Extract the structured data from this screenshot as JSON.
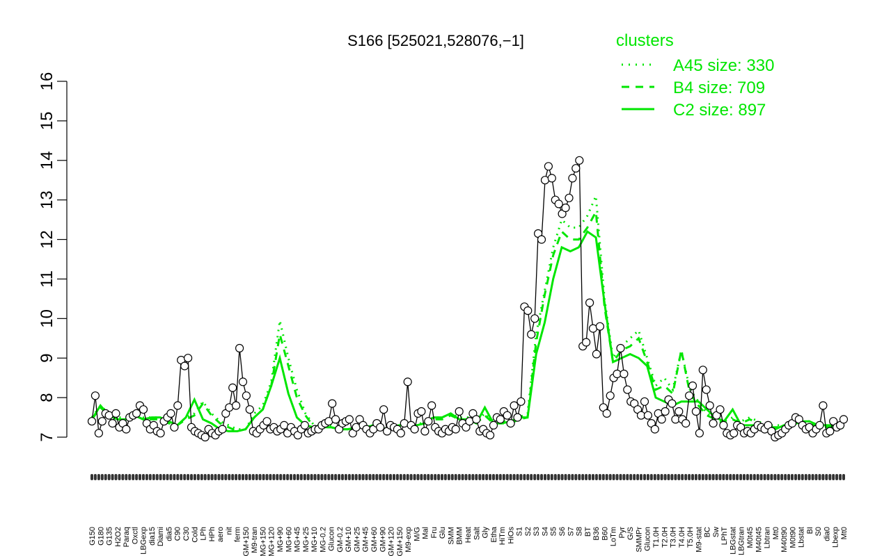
{
  "chart_data": {
    "type": "line",
    "title": "S166 [525021,528076,−1]",
    "ylim": [
      7,
      16
    ],
    "y_ticks": [
      7,
      8,
      9,
      10,
      11,
      12,
      13,
      14,
      15,
      16
    ],
    "legend": {
      "title": "clusters",
      "placement": "top-right",
      "entries": [
        {
          "label": "A45 size: 330",
          "style": "dotted"
        },
        {
          "label": "B4 size: 709",
          "style": "dashed"
        },
        {
          "label": "C2 size: 897",
          "style": "solid"
        }
      ]
    },
    "colors": {
      "series": "#00e600",
      "points": "#000000"
    },
    "x_tick_labels": [
      "G150",
      "G180",
      "G135",
      "H2O2",
      "Paraq",
      "Oxctl",
      "LBGexp",
      "dia15",
      "Diami",
      "dia5",
      "C90",
      "C30",
      "Cold",
      "LPh",
      "HPh",
      "aero",
      "nit",
      "ferm",
      "GM+150",
      "M9-tran",
      "MG+150",
      "MG+120",
      "MG+90",
      "MG+60",
      "MG+45",
      "MG+25",
      "MG+10",
      "MG-0.2",
      "Glucon",
      "GM-0.2",
      "GM+10",
      "GM+25",
      "GM+45",
      "GM+60",
      "GM+90",
      "GM+120",
      "GM+150",
      "M9-exp",
      "M/G",
      "Mal",
      "Fru",
      "Glu",
      "SMM",
      "BMM",
      "Heat",
      "Salt",
      "Gly",
      "Etha",
      "HiTm",
      "HiOs",
      "S1",
      "S2",
      "S3",
      "S4",
      "S5",
      "S6",
      "S7",
      "S8",
      "BT",
      "B36",
      "B60",
      "LoTm",
      "Pyr",
      "G/S",
      "SMMPr",
      "Glucon",
      "T1.0H",
      "T2.0H",
      "T3.0H",
      "T4.0H",
      "T5.0H",
      "M9-stat",
      "BC",
      "Sw",
      "LPhT",
      "LBGstat",
      "LBGtran",
      "M0t45",
      "M40t45",
      "Lbtran",
      "Mt0",
      "M40t90",
      "M0t90",
      "Lbstat",
      "BI",
      "S0",
      "dia0",
      "Lbexp",
      "Mt0"
    ],
    "x_visible_labels": [
      "G150",
      "G180",
      "G135",
      "H2O2",
      "Paraq",
      "Oxctl",
      "LBGexp",
      "dia15",
      "Diami",
      "dia5",
      "C90",
      "C30",
      "Cold",
      "LPh",
      "HPh",
      "aero",
      "nit",
      "ferm",
      "GM+150",
      "M9-tran",
      "MG+150",
      "MG+120",
      "M/G",
      "Mal",
      "Fru",
      "Glu",
      "SMM",
      "BMM",
      "Heat",
      "Salt",
      "Gly",
      "Etha",
      "HiTm",
      "HiOs",
      "S1",
      "S2",
      "S3",
      "S4",
      "S3",
      "S5",
      "S6",
      "S7",
      "S6",
      "S8",
      "S6",
      "BT",
      "B36",
      "B60",
      "LoTm",
      "Pyr",
      "G/S",
      "Glucon",
      "SMMPr",
      "BC",
      "Sw",
      "LPhT",
      "LBGstat",
      "LBGtran",
      "M0t45",
      "M40t45",
      "Lbtran",
      "Mt0",
      "M40t90",
      "M0t90",
      "Lbstat",
      "BI",
      "S0",
      "dia0",
      "M0t45",
      "Lbexp",
      "Mt0"
    ],
    "series": [
      {
        "name": "points",
        "values": [
          7.4,
          8.05,
          7.1,
          7.4,
          7.6,
          7.55,
          7.35,
          7.6,
          7.25,
          7.35,
          7.2,
          7.5,
          7.55,
          7.6,
          7.8,
          7.7,
          7.35,
          7.2,
          7.3,
          7.15,
          7.1,
          7.4,
          7.5,
          7.6,
          7.25,
          7.8,
          8.95,
          8.8,
          9.0,
          7.25,
          7.15,
          7.1,
          7.05,
          7.0,
          7.2,
          7.1,
          7.05,
          7.15,
          7.2,
          7.6,
          7.75,
          8.25,
          7.8,
          9.25,
          8.4,
          8.05,
          7.7,
          7.15,
          7.1,
          7.2,
          7.3,
          7.4,
          7.2,
          7.25,
          7.15,
          7.2,
          7.3,
          7.1,
          7.25,
          7.15,
          7.05,
          7.2,
          7.3,
          7.1,
          7.15,
          7.2,
          7.2,
          7.3,
          7.35,
          7.4,
          7.85,
          7.45,
          7.2,
          7.35,
          7.4,
          7.45,
          7.1,
          7.25,
          7.45,
          7.3,
          7.2,
          7.1,
          7.2,
          7.35,
          7.25,
          7.7,
          7.15,
          7.3,
          7.25,
          7.2,
          7.1,
          7.35,
          8.4,
          7.3,
          7.2,
          7.6,
          7.65,
          7.15,
          7.4,
          7.8,
          7.25,
          7.15,
          7.1,
          7.2,
          7.15,
          7.25,
          7.2,
          7.65,
          7.35,
          7.25,
          7.4,
          7.6,
          7.45,
          7.15,
          7.2,
          7.1,
          7.05,
          7.3,
          7.5,
          7.45,
          7.65,
          7.55,
          7.35,
          7.8,
          7.5,
          7.9,
          10.3,
          10.2,
          9.6,
          10.0,
          12.15,
          12.0,
          13.5,
          13.85,
          13.55,
          13.0,
          12.9,
          12.65,
          12.8,
          13.05,
          13.55,
          13.8,
          14.0,
          9.3,
          9.4,
          10.4,
          9.75,
          9.1,
          9.8,
          7.75,
          7.6,
          8.05,
          8.5,
          8.6,
          9.25,
          8.6,
          8.2,
          7.9,
          7.85,
          7.7,
          7.55,
          7.9,
          7.55,
          7.35,
          7.2,
          7.6,
          7.45,
          7.65,
          7.95,
          7.85,
          7.45,
          7.65,
          7.45,
          7.35,
          8.05,
          8.3,
          7.65,
          7.1,
          8.7,
          8.2,
          7.8,
          7.35,
          7.55,
          7.7,
          7.3,
          7.1,
          7.05,
          7.1,
          7.3,
          7.25,
          7.1,
          7.15,
          7.1,
          7.2,
          7.3,
          7.25,
          7.2,
          7.3,
          7.15,
          7.0,
          7.05,
          7.1,
          7.2,
          7.3,
          7.35,
          7.5,
          7.45,
          7.3,
          7.2,
          7.25,
          7.1,
          7.2,
          7.3,
          7.8,
          7.1,
          7.15,
          7.4,
          7.25,
          7.3,
          7.45
        ]
      },
      {
        "name": "A45 size: 330",
        "style": "dotted",
        "values": [
          7.5,
          7.8,
          7.6,
          7.5,
          7.5,
          7.6,
          7.5,
          7.5,
          7.5,
          7.4,
          7.3,
          7.5,
          7.6,
          7.9,
          7.6,
          7.4,
          7.3,
          7.2,
          7.2,
          7.6,
          7.8,
          8.4,
          9.95,
          9.0,
          8.2,
          7.6,
          7.3,
          7.3,
          7.3,
          7.2,
          7.2,
          7.3,
          7.3,
          7.3,
          7.2,
          7.3,
          7.3,
          7.3,
          7.3,
          7.4,
          7.5,
          7.5,
          7.6,
          7.5,
          7.5,
          7.4,
          7.6,
          7.4,
          7.4,
          7.4,
          7.5,
          7.6,
          9.6,
          10.7,
          11.8,
          12.5,
          12.3,
          12.3,
          12.6,
          13.1,
          10.5,
          9.0,
          9.3,
          9.5,
          9.7,
          9.0,
          8.3,
          8.5,
          8.2,
          9.2,
          8.2,
          7.9,
          7.6,
          7.5,
          7.4,
          7.5,
          7.4,
          7.5,
          7.4,
          7.3,
          7.3,
          7.3,
          7.3,
          7.4,
          7.4,
          7.3,
          7.3,
          7.3,
          7.3
        ]
      },
      {
        "name": "B4 size: 709",
        "style": "dashed",
        "values": [
          7.45,
          7.75,
          7.55,
          7.45,
          7.45,
          7.55,
          7.45,
          7.45,
          7.45,
          7.35,
          7.3,
          7.45,
          7.55,
          7.85,
          7.55,
          7.35,
          7.25,
          7.15,
          7.2,
          7.5,
          7.7,
          8.3,
          9.6,
          8.8,
          8.0,
          7.55,
          7.25,
          7.25,
          7.25,
          7.2,
          7.2,
          7.25,
          7.25,
          7.3,
          7.2,
          7.25,
          7.3,
          7.3,
          7.3,
          7.35,
          7.45,
          7.45,
          7.55,
          7.45,
          7.45,
          7.35,
          7.55,
          7.35,
          7.35,
          7.35,
          7.45,
          7.5,
          9.4,
          10.6,
          11.6,
          12.2,
          12.0,
          12.0,
          12.3,
          12.7,
          10.3,
          8.9,
          9.2,
          9.3,
          9.5,
          8.9,
          8.2,
          8.3,
          8.1,
          9.2,
          8.1,
          7.8,
          7.55,
          7.45,
          7.35,
          7.45,
          7.35,
          7.45,
          7.35,
          7.25,
          7.25,
          7.25,
          7.3,
          7.35,
          7.35,
          7.25,
          7.25,
          7.25,
          7.25
        ]
      },
      {
        "name": "C2 size: 897",
        "style": "solid",
        "values": [
          7.45,
          7.8,
          7.55,
          7.45,
          7.45,
          7.55,
          7.45,
          7.5,
          7.5,
          7.4,
          7.3,
          7.5,
          7.95,
          7.45,
          7.35,
          7.2,
          7.15,
          7.15,
          7.2,
          7.5,
          7.7,
          8.3,
          9.0,
          8.1,
          7.5,
          7.3,
          7.25,
          7.25,
          7.25,
          7.2,
          7.2,
          7.25,
          7.25,
          7.3,
          7.2,
          7.25,
          7.3,
          7.3,
          7.3,
          7.35,
          7.5,
          7.5,
          7.6,
          7.45,
          7.45,
          7.35,
          7.75,
          7.35,
          7.35,
          7.4,
          7.5,
          7.5,
          9.1,
          9.9,
          11.0,
          11.8,
          11.7,
          11.8,
          12.2,
          12.05,
          10.4,
          8.9,
          9.0,
          9.1,
          9.0,
          8.8,
          8.0,
          7.9,
          7.8,
          7.9,
          7.9,
          7.9,
          7.7,
          7.5,
          7.4,
          7.7,
          7.3,
          7.3,
          7.3,
          7.2,
          7.2,
          7.3,
          7.3,
          7.4,
          7.4,
          7.3,
          7.3,
          7.3,
          7.4
        ]
      }
    ]
  }
}
